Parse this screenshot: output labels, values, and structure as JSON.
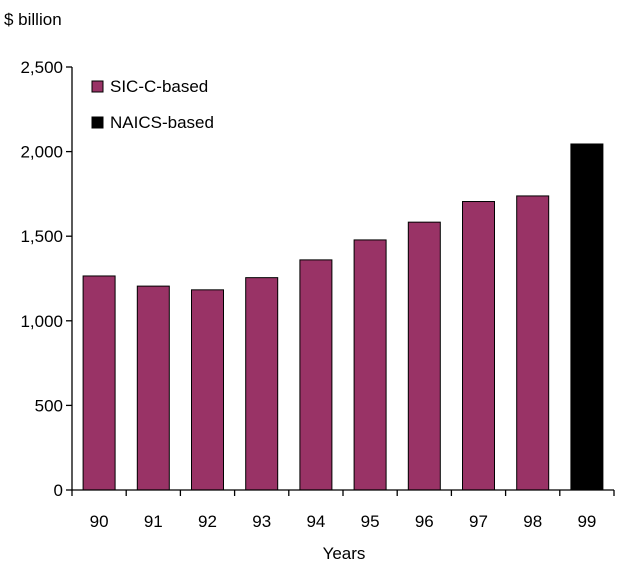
{
  "chart_data": {
    "type": "bar",
    "ylabel": "$ billion",
    "xlabel": "Years",
    "ylim": [
      0,
      2500
    ],
    "yticks": [
      0,
      500,
      1000,
      1500,
      2000,
      2500
    ],
    "ytick_labels": [
      "0",
      "500",
      "1,000",
      "1,500",
      "2,000",
      "2,500"
    ],
    "categories": [
      "90",
      "91",
      "92",
      "93",
      "94",
      "95",
      "96",
      "97",
      "98",
      "99"
    ],
    "series": [
      {
        "name": "SIC-C-based",
        "color": "#993366",
        "values": [
          1265,
          1205,
          1183,
          1255,
          1360,
          1478,
          1583,
          1705,
          1738,
          null
        ]
      },
      {
        "name": "NAICS-based",
        "color": "#000000",
        "values": [
          null,
          null,
          null,
          null,
          null,
          null,
          null,
          null,
          null,
          2045
        ]
      }
    ],
    "legend_position": "top-left",
    "grid": false
  }
}
